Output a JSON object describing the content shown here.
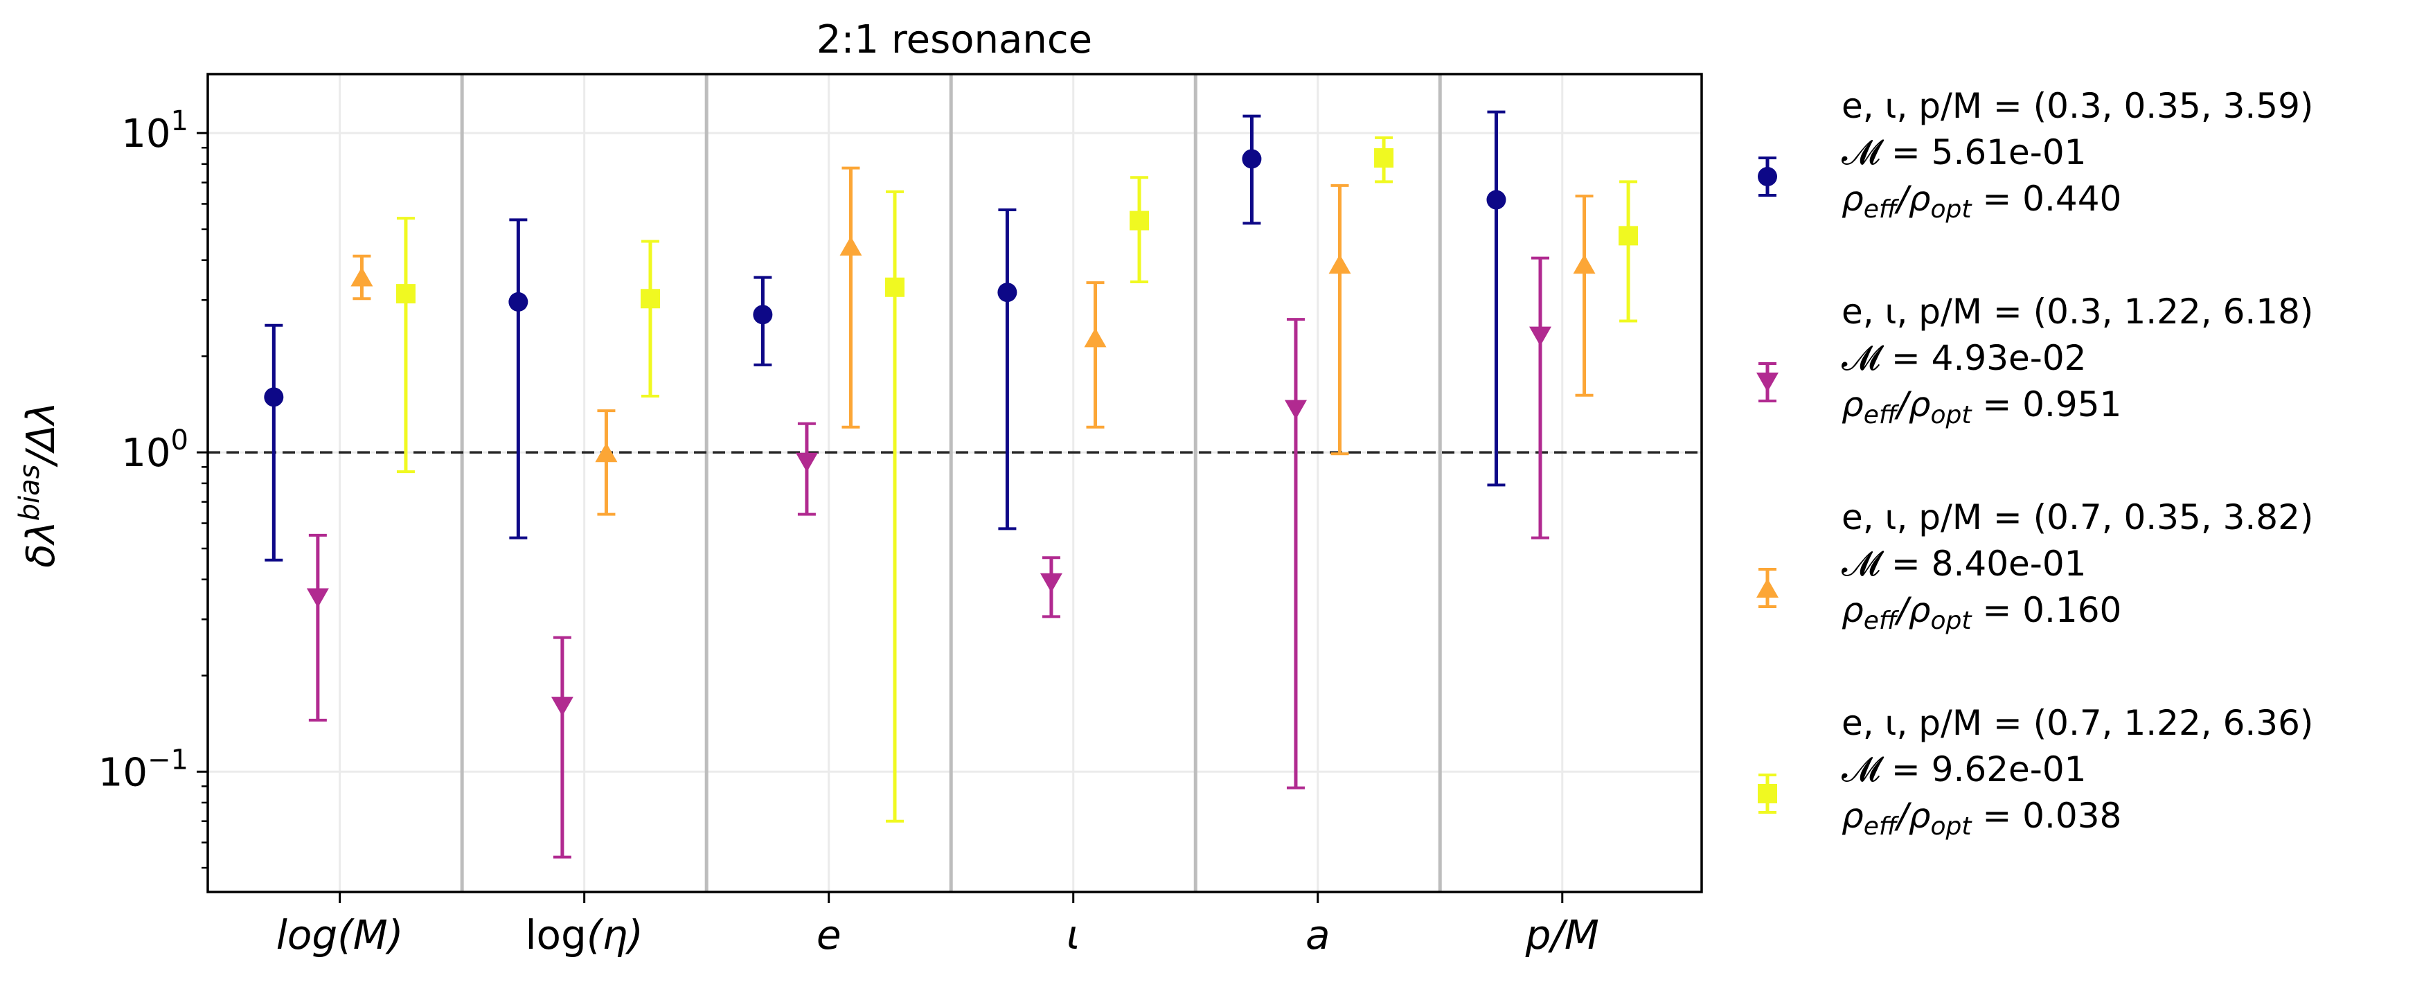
{
  "chart_data": {
    "type": "errorbar",
    "title": "2:1 resonance",
    "ylabel": {
      "main": "δλ",
      "sup": "bias",
      "rest": "/Δλ"
    },
    "y_scale": "log",
    "ylim": [
      0.042,
      15.3
    ],
    "y_ticks": [
      {
        "value": 0.1,
        "base": "10",
        "exp": "−1"
      },
      {
        "value": 1,
        "base": "10",
        "exp": "0"
      },
      {
        "value": 10,
        "base": "10",
        "exp": "1"
      }
    ],
    "xlim": [
      -0.54,
      5.57
    ],
    "categories": [
      {
        "label": "log(M)",
        "style": "italic"
      },
      {
        "prefix": "log",
        "label": "(η)",
        "style": "mixed"
      },
      {
        "label": "e",
        "style": "italic"
      },
      {
        "label": "ι",
        "style": "italic"
      },
      {
        "label": "a",
        "style": "italic"
      },
      {
        "label": "p/M",
        "style": "italic"
      }
    ],
    "reference_line": {
      "y": 1,
      "style": "dashed",
      "color": "#000000"
    },
    "group_separators": true,
    "grid": true,
    "series_offsets": [
      -0.27,
      -0.09,
      0.09,
      0.27
    ],
    "legend_position": "outside-right",
    "series": [
      {
        "marker": "circle",
        "color": "#0d0887",
        "legend": {
          "line1": "e, ι, p/M = (0.3, 0.35, 3.59)",
          "mismatch": "𝓜 = 5.61e-01",
          "snr_value": " = 0.440"
        },
        "values": [
          1.49,
          2.96,
          2.7,
          3.17,
          8.3,
          6.18
        ],
        "lower": [
          0.46,
          0.54,
          1.88,
          0.577,
          5.22,
          0.79
        ],
        "upper": [
          2.5,
          5.35,
          3.53,
          5.75,
          11.3,
          11.65
        ]
      },
      {
        "marker": "triangle-down",
        "color": "#b12a90",
        "legend": {
          "line1": "e, ι, p/M = (0.3, 1.22, 6.18)",
          "mismatch": "𝓜 = 4.93e-02",
          "snr_value": " = 0.951"
        },
        "values": [
          0.35,
          0.16,
          0.93,
          0.39,
          1.36,
          2.31
        ],
        "lower": [
          0.145,
          0.054,
          0.64,
          0.306,
          0.089,
          0.54
        ],
        "upper": [
          0.55,
          0.263,
          1.23,
          0.468,
          2.61,
          4.06
        ]
      },
      {
        "marker": "triangle-up",
        "color": "#fca636",
        "legend": {
          "line1": "e, ι, p/M = (0.7, 0.35, 3.82)",
          "mismatch": "𝓜 = 8.40e-01",
          "snr_value": " = 0.160"
        },
        "values": [
          3.55,
          1.0,
          4.43,
          2.29,
          3.89,
          3.89
        ],
        "lower": [
          3.03,
          0.64,
          1.2,
          1.2,
          0.99,
          1.51
        ],
        "upper": [
          4.12,
          1.35,
          7.77,
          3.4,
          6.85,
          6.35
        ]
      },
      {
        "marker": "square",
        "color": "#f0f921",
        "legend": {
          "line1": "e, ι, p/M = (0.7, 1.22, 6.36)",
          "mismatch": "𝓜 = 9.62e-01",
          "snr_value": " = 0.038"
        },
        "values": [
          3.14,
          3.03,
          3.29,
          5.32,
          8.36,
          4.77
        ],
        "lower": [
          0.87,
          1.5,
          0.07,
          3.42,
          7.04,
          2.58
        ],
        "upper": [
          5.41,
          4.58,
          6.55,
          7.26,
          9.67,
          7.04
        ]
      }
    ],
    "snr_label": {
      "sym": "ρ",
      "num_sub": "eff",
      "slash": "/",
      "den_sub": "opt"
    }
  }
}
